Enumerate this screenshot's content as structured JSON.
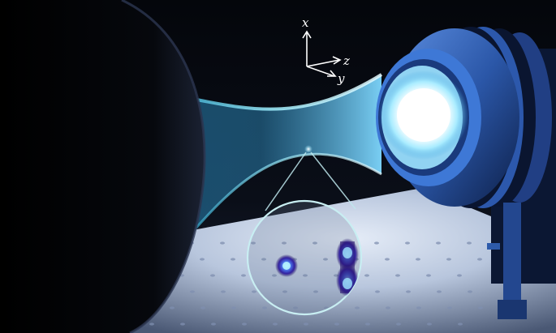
{
  "axes": {
    "x_label": "x",
    "y_label": "y",
    "z_label": "z"
  },
  "colors": {
    "background": "#05070d",
    "beam": "#48b6e6",
    "beam_edge": "#9fe9ff",
    "lens_glow": "#ffffff",
    "lens_halo": "#7fd6ff",
    "mount_blue": "#2f5fb5",
    "inset_circle": "#bfe8ee",
    "atom_core": "#8fe6ff",
    "atom_mid": "#3a55d6",
    "atom_outer": "#2a1670",
    "table": "#c9d4e6"
  },
  "icons": {
    "axes_indicator": "coordinate-axes-icon"
  }
}
